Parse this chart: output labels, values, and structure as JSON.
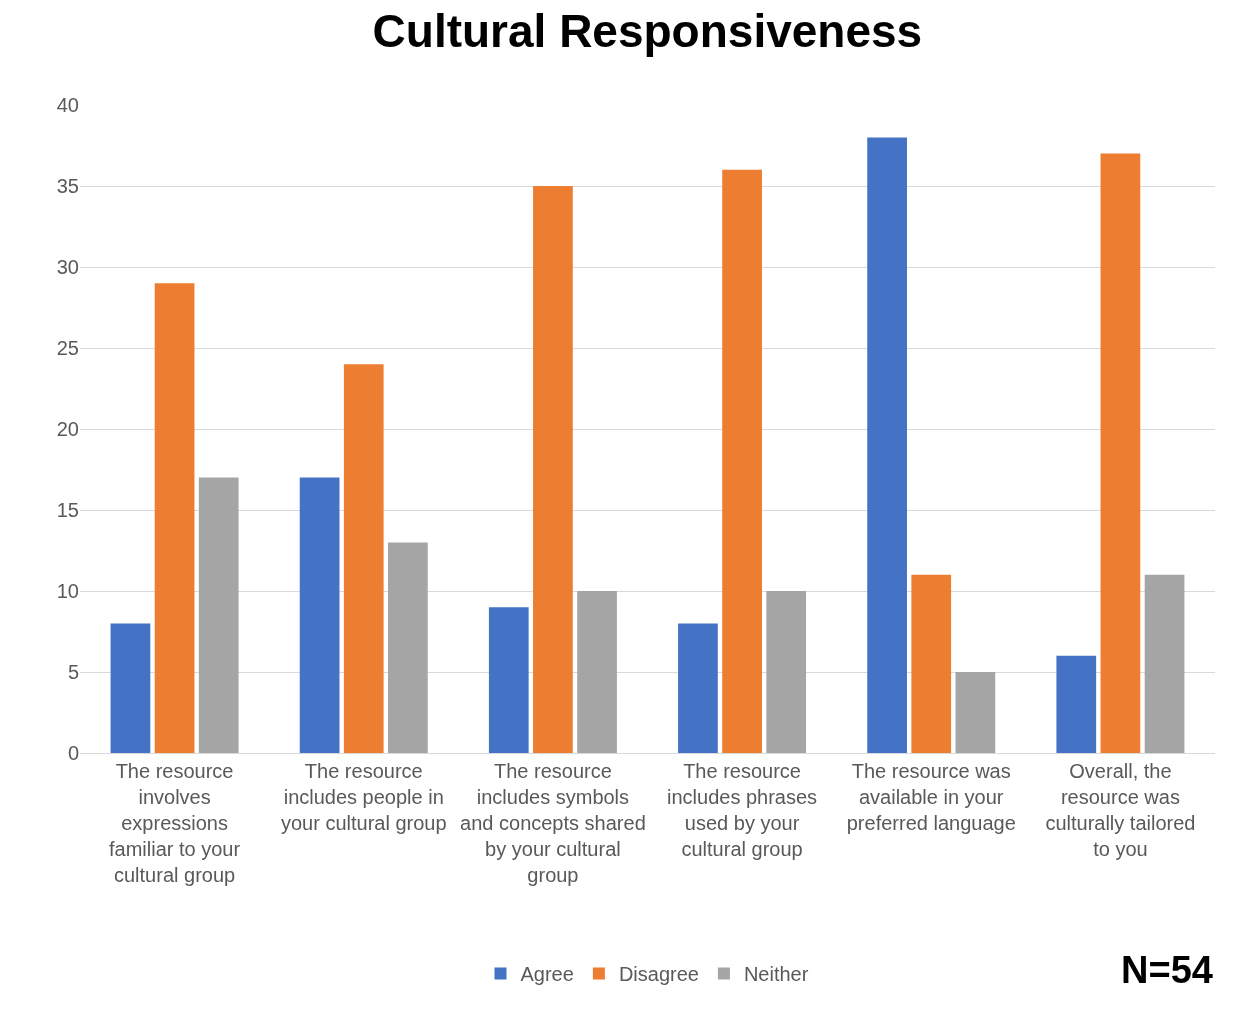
{
  "chart_data": {
    "type": "bar",
    "title": "Cultural Responsiveness",
    "categories": [
      "The resource involves expressions familiar to your cultural group",
      "The resource includes people in your cultural group",
      "The resource includes symbols and concepts shared by your cultural group",
      "The resource includes phrases used by your cultural group",
      "The resource was available in your preferred language",
      "Overall, the resource was culturally tailored to you"
    ],
    "series": [
      {
        "name": "Agree",
        "color": "#4472c4",
        "values": [
          8,
          17,
          9,
          8,
          38,
          6
        ]
      },
      {
        "name": "Disagree",
        "color": "#ed7d31",
        "values": [
          29,
          24,
          35,
          36,
          11,
          37
        ]
      },
      {
        "name": "Neither",
        "color": "#a5a5a5",
        "values": [
          17,
          13,
          10,
          10,
          5,
          11
        ]
      }
    ],
    "ylim": [
      0,
      40
    ],
    "yticks": [
      0,
      5,
      10,
      15,
      20,
      25,
      30,
      35,
      40
    ],
    "grid": "y",
    "legend": "bottom",
    "annotations": [
      "N=54"
    ]
  }
}
